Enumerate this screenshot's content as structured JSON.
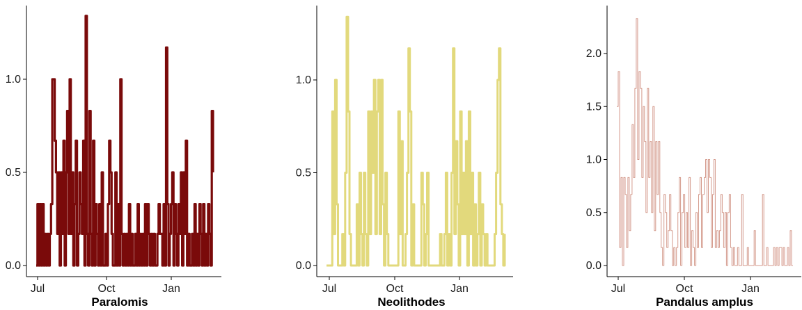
{
  "chart_data": [
    {
      "type": "line",
      "title": "Paralomis",
      "color": "#7a0a0a",
      "x_ticks": [
        "Jul",
        "Oct",
        "Jan"
      ],
      "y_ticks": [
        "0.0",
        "0.5",
        "1.0"
      ],
      "ylim": [
        0,
        1.35
      ],
      "x_range": [
        "Jun 25",
        "Mar 15"
      ],
      "series": [
        {
          "values": [
            0,
            0.33,
            0,
            0.33,
            0,
            0.33,
            0,
            0.17,
            0,
            0.17,
            0,
            0.17,
            0.33,
            1,
            1,
            0.67,
            0.5,
            0.17,
            0.5,
            0,
            0.5,
            0.17,
            0.67,
            0,
            0.5,
            0.83,
            0.17,
            1,
            0.17,
            0.5,
            0,
            0.33,
            0.67,
            0,
            0.17,
            0.5,
            0.33,
            0.17,
            0.67,
            0,
            1.34,
            0.17,
            0,
            0.83,
            0.17,
            0,
            0.67,
            0,
            0.33,
            0.17,
            0,
            0.33,
            0,
            0.5,
            0,
            0,
            0.17,
            0,
            0.33,
            0.67,
            0.5,
            0.17,
            0,
            0,
            0.5,
            0,
            0.33,
            0,
            1,
            0.17,
            0,
            0.17,
            0,
            0.17,
            0,
            0.33,
            0,
            0.17,
            0,
            0,
            0.17,
            0,
            0.33,
            0,
            0.17,
            0,
            0.17,
            0,
            0.33,
            0,
            0.33,
            0.17,
            0,
            0.17,
            0,
            0.17,
            0,
            0,
            0.17,
            0.33,
            0.17,
            0.17,
            0,
            0.33,
            0,
            1.17,
            0.33,
            0,
            0.17,
            0.33,
            0.5,
            0,
            0.33,
            0.17,
            0,
            0.33,
            0.17,
            0.5,
            0,
            0.5,
            0.17,
            0.67,
            0,
            0.17,
            0,
            0,
            0.17,
            0,
            0.33,
            0,
            0.17,
            0,
            0.33,
            0.17,
            0,
            0.33,
            0,
            0.17,
            0,
            0.33,
            0.17,
            0,
            0.83,
            0.5
          ]
        }
      ]
    },
    {
      "type": "line",
      "title": "Neolithodes",
      "color": "#e2d97c",
      "x_ticks": [
        "Jul",
        "Oct",
        "Jan"
      ],
      "y_ticks": [
        "0.0",
        "0.5",
        "1.0"
      ],
      "ylim": [
        0,
        1.35
      ],
      "x_range": [
        "Jun 25",
        "Mar 15"
      ],
      "series": [
        {
          "values": [
            0,
            0,
            0,
            0,
            0.83,
            0.17,
            1,
            0.33,
            0,
            0,
            0,
            0.17,
            0,
            0.5,
            1.34,
            0.83,
            0.17,
            0,
            0,
            0,
            0,
            0.33,
            0,
            0.5,
            0.17,
            0,
            0.5,
            0.17,
            0,
            0.83,
            0.17,
            0.83,
            0.5,
            1,
            0.17,
            0.83,
            1,
            0.17,
            1,
            0.33,
            0,
            0.5,
            0.17,
            0,
            0,
            0,
            0,
            0,
            0,
            0,
            0.83,
            0.17,
            0.67,
            0,
            0,
            0.17,
            0.5,
            1.17,
            0.83,
            0,
            0.33,
            0,
            0,
            0,
            0,
            0,
            0.5,
            0.33,
            0,
            0.17,
            0.5,
            0,
            0,
            0,
            0,
            0,
            0,
            0,
            0,
            0.17,
            0,
            0,
            0.17,
            0.5,
            0,
            0.17,
            0,
            0.5,
            1.17,
            0.17,
            0.67,
            0.33,
            0,
            0.83,
            0.17,
            0.5,
            0.17,
            0.67,
            0,
            0.83,
            0.17,
            0.5,
            0,
            0.33,
            0,
            0.17,
            0.5,
            0,
            0.33,
            0.17,
            0,
            0.17,
            0,
            0,
            0,
            0,
            0,
            0.17,
            0.5,
            1,
            1.17,
            0.33,
            0.17,
            0,
            0.17
          ]
        }
      ]
    },
    {
      "type": "line",
      "title": "Pandalus amplus",
      "color": "#d49a8c",
      "x_ticks": [
        "Jul",
        "Oct",
        "Jan"
      ],
      "y_ticks": [
        "0.0",
        "0.5",
        "1.0",
        "1.5",
        "2.0"
      ],
      "ylim": [
        0,
        2.4
      ],
      "x_range": [
        "Jun 25",
        "Mar 15"
      ],
      "series": [
        {
          "values": [
            1.5,
            1.83,
            0.17,
            0.83,
            0,
            0.83,
            0.67,
            0.17,
            0.83,
            0.33,
            0.67,
            1.33,
            0.83,
            1.67,
            2.33,
            1,
            1.83,
            1.67,
            0.83,
            1.5,
            1.17,
            0.5,
            1.67,
            0.83,
            1.17,
            0.5,
            1.5,
            0.33,
            1.17,
            0.67,
            1.17,
            0.5,
            0.17,
            0,
            0.67,
            0.5,
            0.17,
            0.33,
            0.67,
            0.33,
            0,
            0.17,
            0,
            0.17,
            0.5,
            0.83,
            0,
            0.5,
            0.67,
            0.17,
            0.5,
            0.17,
            0.83,
            0,
            0.33,
            0.17,
            0,
            0.5,
            0.17,
            0.67,
            0.83,
            0.17,
            0.67,
            0.83,
            1,
            0.5,
            1,
            0.83,
            0.17,
            0.67,
            1,
            0.17,
            0.33,
            0.17,
            0.33,
            0.67,
            0.5,
            0.17,
            0.5,
            0,
            0.5,
            0.67,
            0.17,
            0,
            0.17,
            0,
            0,
            0.17,
            0,
            0,
            0.67,
            0,
            0,
            0,
            0.17,
            0,
            0,
            0,
            0,
            0.33,
            0,
            0,
            0,
            0,
            0,
            0.67,
            0,
            0,
            0.17,
            0,
            0,
            0,
            0,
            0.17,
            0,
            0.17,
            0,
            0.17,
            0.17,
            0,
            0.17,
            0,
            0,
            0.17,
            0,
            0.33,
            0,
            0
          ]
        }
      ]
    }
  ]
}
